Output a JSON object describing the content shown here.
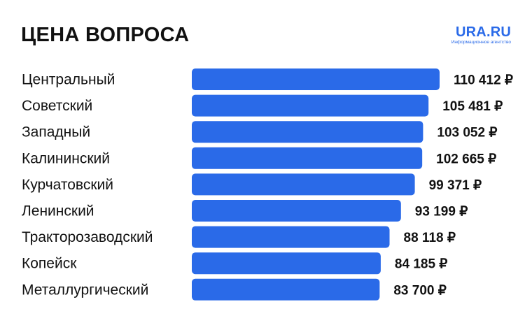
{
  "header": {
    "title": "ЦЕНА ВОПРОСА",
    "logo_name": "URA.RU",
    "logo_tagline": "Информационное агентство"
  },
  "colors": {
    "bar": "#2a6ae8",
    "accent": "#2a6ae8",
    "text": "#111111"
  },
  "chart_data": {
    "type": "bar",
    "orientation": "horizontal",
    "title": "ЦЕНА ВОПРОСА",
    "unit": "₽",
    "categories": [
      "Центральный",
      "Советский",
      "Западный",
      "Калининский",
      "Курчатовский",
      "Ленинский",
      "Тракторозаводский",
      "Копейск",
      "Металлургический"
    ],
    "values": [
      110412,
      105481,
      103052,
      102665,
      99371,
      93199,
      88118,
      84185,
      83700
    ],
    "value_labels": [
      "110 412 ₽",
      "105 481 ₽",
      "103 052 ₽",
      "102 665 ₽",
      "99 371 ₽",
      "93 199 ₽",
      "88 118 ₽",
      "84 185 ₽",
      "83 700 ₽"
    ],
    "grid": false,
    "legend": "none"
  }
}
